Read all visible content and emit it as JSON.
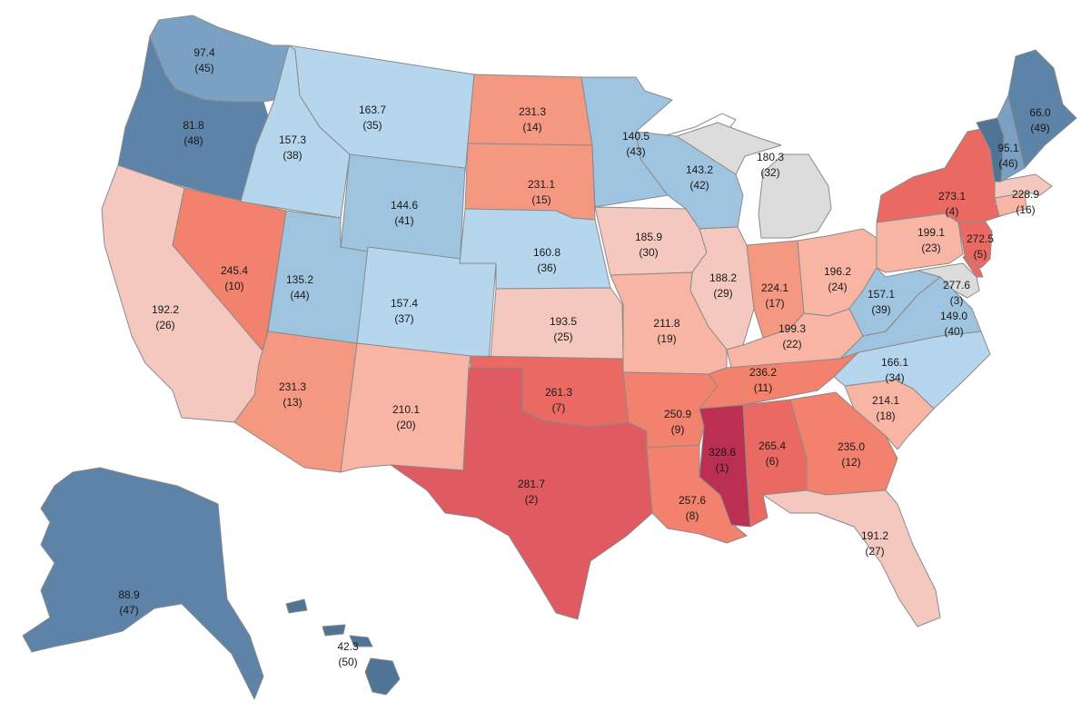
{
  "map": {
    "palette": {
      "blue_1": "#4f7496",
      "blue_2": "#5e83a8",
      "blue_3": "#7aa1c4",
      "blue_4": "#9fc4e0",
      "blue_5": "#b5d6ec",
      "neutral": "#dcdcdc",
      "pink_1": "#f5c8bf",
      "pink_2": "#f9b5a4",
      "salmon": "#f59882",
      "coral": "#f2816d",
      "red_1": "#ea6a63",
      "red_2": "#e05a61",
      "crimson": "#ba2f52"
    },
    "states": [
      {
        "id": "WA",
        "value": "97.4",
        "rank": "(45)",
        "color": "blue_3"
      },
      {
        "id": "OR",
        "value": "81.8",
        "rank": "(48)",
        "color": "blue_2"
      },
      {
        "id": "CA",
        "value": "192.2",
        "rank": "(26)",
        "color": "pink_1"
      },
      {
        "id": "NV",
        "value": "245.4",
        "rank": "(10)",
        "color": "coral"
      },
      {
        "id": "ID",
        "value": "157.3",
        "rank": "(38)",
        "color": "blue_5"
      },
      {
        "id": "MT",
        "value": "163.7",
        "rank": "(35)",
        "color": "blue_5"
      },
      {
        "id": "WY",
        "value": "144.6",
        "rank": "(41)",
        "color": "blue_4"
      },
      {
        "id": "UT",
        "value": "135.2",
        "rank": "(44)",
        "color": "blue_4"
      },
      {
        "id": "CO",
        "value": "157.4",
        "rank": "(37)",
        "color": "blue_5"
      },
      {
        "id": "AZ",
        "value": "231.3",
        "rank": "(13)",
        "color": "salmon"
      },
      {
        "id": "NM",
        "value": "210.1",
        "rank": "(20)",
        "color": "pink_2"
      },
      {
        "id": "ND",
        "value": "231.3",
        "rank": "(14)",
        "color": "salmon"
      },
      {
        "id": "SD",
        "value": "231.1",
        "rank": "(15)",
        "color": "salmon"
      },
      {
        "id": "NE",
        "value": "160.8",
        "rank": "(36)",
        "color": "blue_5"
      },
      {
        "id": "KS",
        "value": "193.5",
        "rank": "(25)",
        "color": "pink_1"
      },
      {
        "id": "OK",
        "value": "261.3",
        "rank": "(7)",
        "color": "red_1"
      },
      {
        "id": "TX",
        "value": "281.7",
        "rank": "(2)",
        "color": "red_2"
      },
      {
        "id": "MN",
        "value": "140.5",
        "rank": "(43)",
        "color": "blue_4"
      },
      {
        "id": "IA",
        "value": "185.9",
        "rank": "(30)",
        "color": "pink_1"
      },
      {
        "id": "MO",
        "value": "211.8",
        "rank": "(19)",
        "color": "pink_2"
      },
      {
        "id": "AR",
        "value": "250.9",
        "rank": "(9)",
        "color": "coral"
      },
      {
        "id": "LA",
        "value": "257.6",
        "rank": "(8)",
        "color": "coral"
      },
      {
        "id": "WI",
        "value": "143.2",
        "rank": "(42)",
        "color": "blue_4"
      },
      {
        "id": "IL",
        "value": "188.2",
        "rank": "(29)",
        "color": "pink_1"
      },
      {
        "id": "MI",
        "value": "180.3",
        "rank": "(32)",
        "color": "neutral"
      },
      {
        "id": "IN",
        "value": "224.1",
        "rank": "(17)",
        "color": "salmon"
      },
      {
        "id": "OH",
        "value": "196.2",
        "rank": "(24)",
        "color": "pink_2"
      },
      {
        "id": "KY",
        "value": "199.3",
        "rank": "(22)",
        "color": "pink_2"
      },
      {
        "id": "TN",
        "value": "236.2",
        "rank": "(11)",
        "color": "coral"
      },
      {
        "id": "MS",
        "value": "328.6",
        "rank": "(1)",
        "color": "crimson"
      },
      {
        "id": "AL",
        "value": "265.4",
        "rank": "(6)",
        "color": "red_1"
      },
      {
        "id": "GA",
        "value": "235.0",
        "rank": "(12)",
        "color": "coral"
      },
      {
        "id": "FL",
        "value": "191.2",
        "rank": "(27)",
        "color": "pink_1"
      },
      {
        "id": "SC",
        "value": "214.1",
        "rank": "(18)",
        "color": "pink_2"
      },
      {
        "id": "NC",
        "value": "166.1",
        "rank": "(34)",
        "color": "blue_5"
      },
      {
        "id": "VA",
        "value": "149.0",
        "rank": "(40)",
        "color": "blue_4"
      },
      {
        "id": "WV",
        "value": "157.1",
        "rank": "(39)",
        "color": "blue_4"
      },
      {
        "id": "PA",
        "value": "199.1",
        "rank": "(23)",
        "color": "pink_2"
      },
      {
        "id": "NY",
        "value": "273.1",
        "rank": "(4)",
        "color": "red_1"
      },
      {
        "id": "NJ",
        "value": "272.5",
        "rank": "(5)",
        "color": "red_1"
      },
      {
        "id": "DE",
        "value": "277.6",
        "rank": "(3)",
        "color": "red_1"
      },
      {
        "id": "MD",
        "value": "",
        "rank": "",
        "color": "neutral"
      },
      {
        "id": "CT",
        "value": "",
        "rank": "",
        "color": "pink_2"
      },
      {
        "id": "MA",
        "value": "228.9",
        "rank": "(16)",
        "color": "pink_1"
      },
      {
        "id": "VT",
        "value": "95.1",
        "rank": "(46)",
        "color": "blue_1"
      },
      {
        "id": "NH",
        "value": "",
        "rank": "",
        "color": "blue_3"
      },
      {
        "id": "ME",
        "value": "66.0",
        "rank": "(49)",
        "color": "blue_2"
      },
      {
        "id": "AK",
        "value": "88.9",
        "rank": "(47)",
        "color": "blue_2"
      },
      {
        "id": "HI",
        "value": "42.3",
        "rank": "(50)",
        "color": "blue_1"
      }
    ]
  }
}
